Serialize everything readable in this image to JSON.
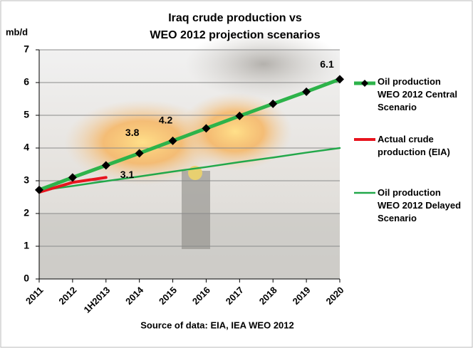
{
  "chart_data": {
    "type": "line",
    "title": [
      "Iraq crude production vs",
      "WEO 2012 projection scenarios"
    ],
    "y_label": "mb/d",
    "x_label": "Source of data: EIA, IEA WEO 2012",
    "categories": [
      "2011",
      "2012",
      "1H2013",
      "2014",
      "2015",
      "2016",
      "2017",
      "2018",
      "2019",
      "2020"
    ],
    "series": [
      {
        "name": "Oil production WEO 2012 Central Scenario",
        "color": "#2db34a",
        "width": 5,
        "marker": "diamond",
        "values": [
          2.72,
          3.1,
          3.47,
          3.84,
          4.22,
          4.6,
          4.98,
          5.35,
          5.72,
          6.1
        ],
        "value_labels": [
          null,
          null,
          null,
          "3.8",
          "4.2",
          null,
          null,
          null,
          null,
          "6.1"
        ]
      },
      {
        "name": "Actual crude production (EIA)",
        "color": "#e8141e",
        "width": 4,
        "values": [
          2.65,
          2.95,
          3.1,
          null,
          null,
          null,
          null,
          null,
          null,
          null
        ],
        "value_labels": [
          null,
          null,
          "3.1",
          null,
          null,
          null,
          null,
          null,
          null,
          null
        ]
      },
      {
        "name": "Oil production WEO 2012 Delayed Scenario",
        "color": "#22a84a",
        "width": 2.5,
        "values": [
          2.7,
          2.84,
          2.99,
          3.13,
          3.28,
          3.42,
          3.57,
          3.71,
          3.86,
          4.0
        ]
      }
    ],
    "ylim": [
      0,
      7
    ],
    "yticks": [
      0,
      1,
      2,
      3,
      4,
      5,
      6,
      7
    ],
    "grid": true
  }
}
